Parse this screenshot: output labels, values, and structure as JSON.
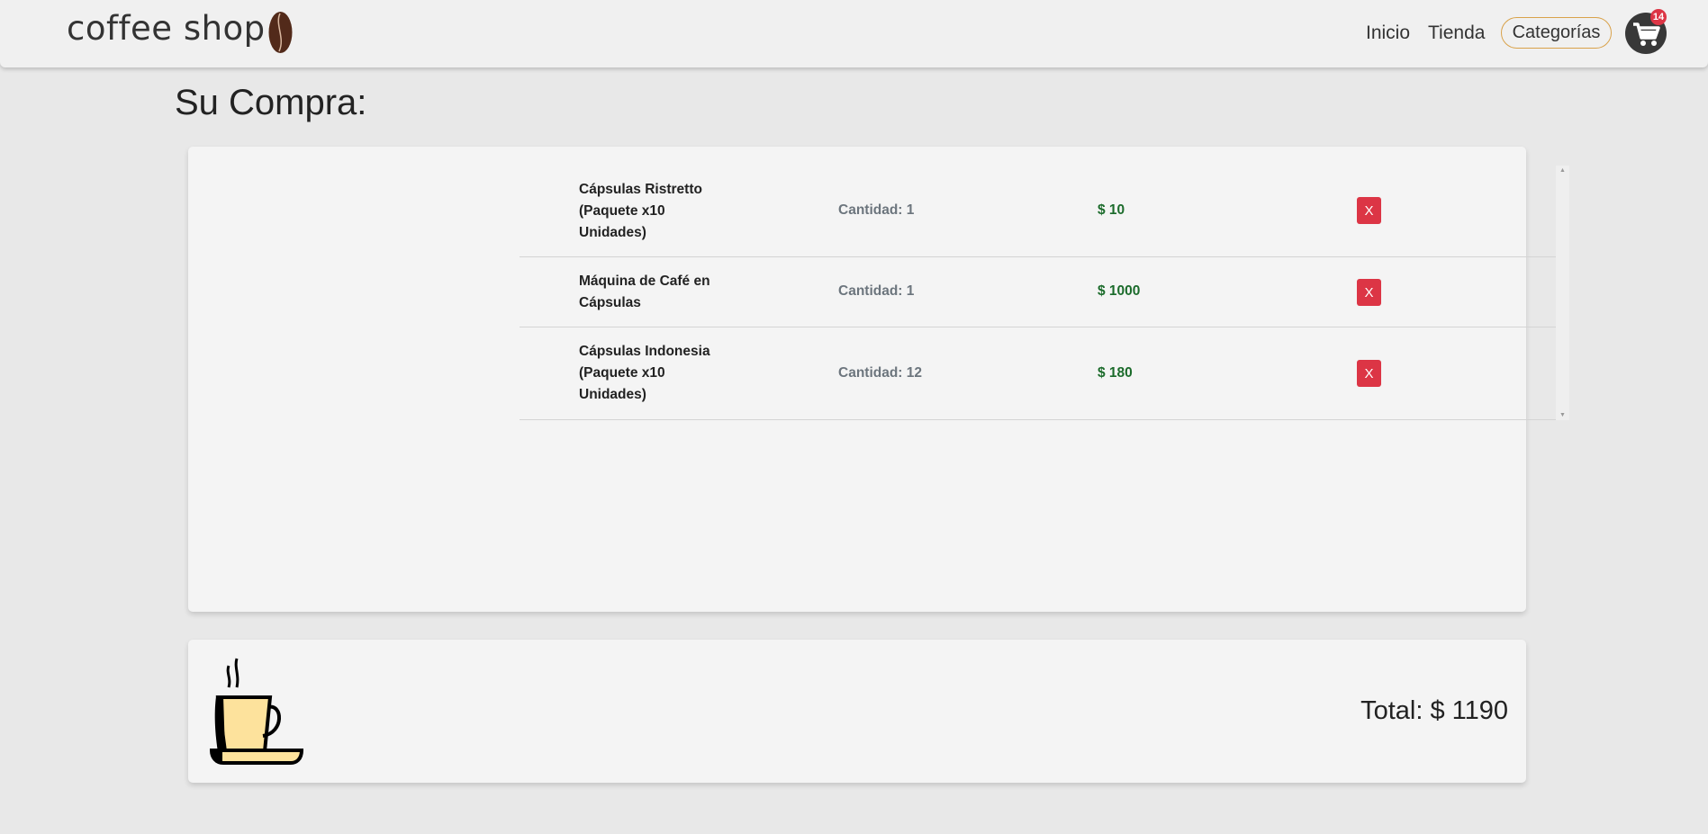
{
  "header": {
    "brand": "coffee shop",
    "nav": [
      "Inicio",
      "Tienda"
    ],
    "categories": "Categorías",
    "cart_count": "14"
  },
  "page_title": "Su Compra:",
  "items": [
    {
      "name": "Cápsulas Ristretto (Paquete x10 Unidades)",
      "quantity": "Cantidad: 1",
      "price": "$ 10",
      "remove": "X"
    },
    {
      "name": "Máquina de Café en Cápsulas",
      "quantity": "Cantidad: 1",
      "price": "$ 1000",
      "remove": "X"
    },
    {
      "name": "Cápsulas Indonesia (Paquete x10 Unidades)",
      "quantity": "Cantidad: 12",
      "price": "$ 180",
      "remove": "X"
    }
  ],
  "total": "Total: $ 1190",
  "colors": {
    "accent": "#d9a24a",
    "danger": "#dc3545",
    "price": "#1b6b2b"
  }
}
